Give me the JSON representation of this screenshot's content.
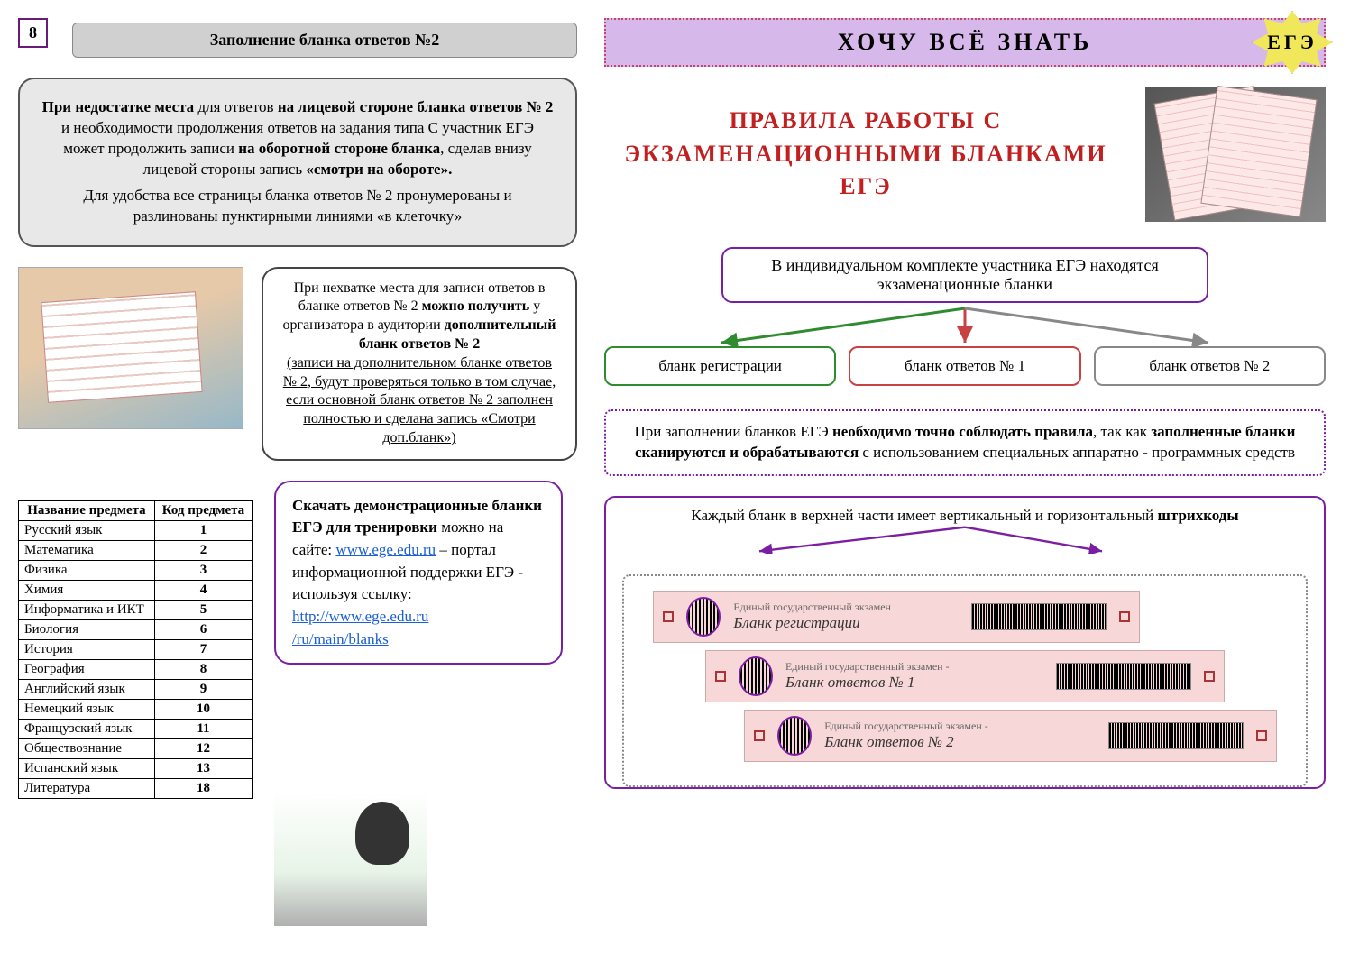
{
  "page_number": "8",
  "left": {
    "title_bar": "Заполнение бланка  ответов №2",
    "gray_box_p1_pre": "При недостатке места",
    "gray_box_p1_mid1": " для ответов ",
    "gray_box_p1_b2": "на лицевой стороне бланка ответов № 2",
    "gray_box_p1_mid2": " и необходимости продолжения ответов на задания типа С участник ЕГЭ может продолжить записи ",
    "gray_box_p1_b3": "на оборотной стороне бланка",
    "gray_box_p1_mid3": ", сделав внизу лицевой стороны запись ",
    "gray_box_p1_b4": "«смотри на обороте».",
    "gray_box_p2": "Для удобства все страницы бланка ответов № 2 пронумерованы и разлинованы пунктирными линиями «в клеточку»",
    "mid_box_l1": "При нехватке места для записи ответов в бланке ответов № 2 ",
    "mid_box_b1": "можно получить",
    "mid_box_l2": " у организатора в аудитории ",
    "mid_box_b2": "дополнительный бланк ответов № 2",
    "mid_box_under": "(записи на дополнительном бланке ответов № 2, будут проверяться только в том случае, если основной бланк ответов № 2 заполнен полностью и сделана запись «Смотри доп.бланк»)",
    "table_h1": "Название предмета",
    "table_h2": "Код предмета",
    "subjects": [
      {
        "name": "Русский язык",
        "code": "1"
      },
      {
        "name": "Математика",
        "code": "2"
      },
      {
        "name": "Физика",
        "code": "3"
      },
      {
        "name": "Химия",
        "code": "4"
      },
      {
        "name": "Информатика и ИКТ",
        "code": "5"
      },
      {
        "name": "Биология",
        "code": "6"
      },
      {
        "name": "История",
        "code": "7"
      },
      {
        "name": "География",
        "code": "8"
      },
      {
        "name": "Английский язык",
        "code": "9"
      },
      {
        "name": "Немецкий язык",
        "code": "10"
      },
      {
        "name": "Французский язык",
        "code": "11"
      },
      {
        "name": "Обществознание",
        "code": "12"
      },
      {
        "name": "Испанский язык",
        "code": "13"
      },
      {
        "name": "Литература",
        "code": "18"
      }
    ],
    "purple_b1": "Скачать демонстрационные бланки ЕГЭ для тренировки",
    "purple_t1": " можно на сайте:  ",
    "purple_link1": "www.ege.edu.ru",
    "purple_t2": " – портал информационной поддержки   ЕГЭ  -  используя ссылку: ",
    "purple_link2": "http://www.ege.edu.ru",
    "purple_link3": "/ru/main/blanks"
  },
  "right": {
    "banner": "ХОЧУ  ВСЁ  ЗНАТЬ",
    "badge": "ЕГЭ",
    "title": "ПРАВИЛА  РАБОТЫ  С ЭКЗАМЕНАЦИОННЫМИ БЛАНКАМИ  ЕГЭ",
    "tree_top": "В индивидуальном комплекте участника ЕГЭ находятся экзаменационные бланки",
    "node_green": "бланк регистрации",
    "node_red": "бланк ответов № 1",
    "node_gray": "бланк ответов № 2",
    "dotted_pre": "При заполнении бланков ЕГЭ ",
    "dotted_b1": "необходимо точно соблюдать правила",
    "dotted_mid": ", так как ",
    "dotted_b2": "заполненные бланки сканируются и обрабатываются",
    "dotted_post": " с использованием специальных аппаратно - программных средств",
    "barcode_intro_pre": "Каждый бланк в верхней части имеет вертикальный и горизонтальный ",
    "barcode_intro_b": "штрихкоды",
    "strips": [
      {
        "small": "Единый государственный экзамен",
        "title": "Бланк регистрации"
      },
      {
        "small": "Единый государственный экзамен -",
        "title": "Бланк ответов № 1"
      },
      {
        "small": "Единый государственный экзамен -",
        "title": "Бланк ответов № 2"
      }
    ],
    "colors": {
      "purple": "#7b1fa2",
      "green": "#2e8b2e",
      "red": "#c94242",
      "gray": "#888888",
      "lilac": "#d7b8ea",
      "title_red": "#c02020"
    }
  }
}
